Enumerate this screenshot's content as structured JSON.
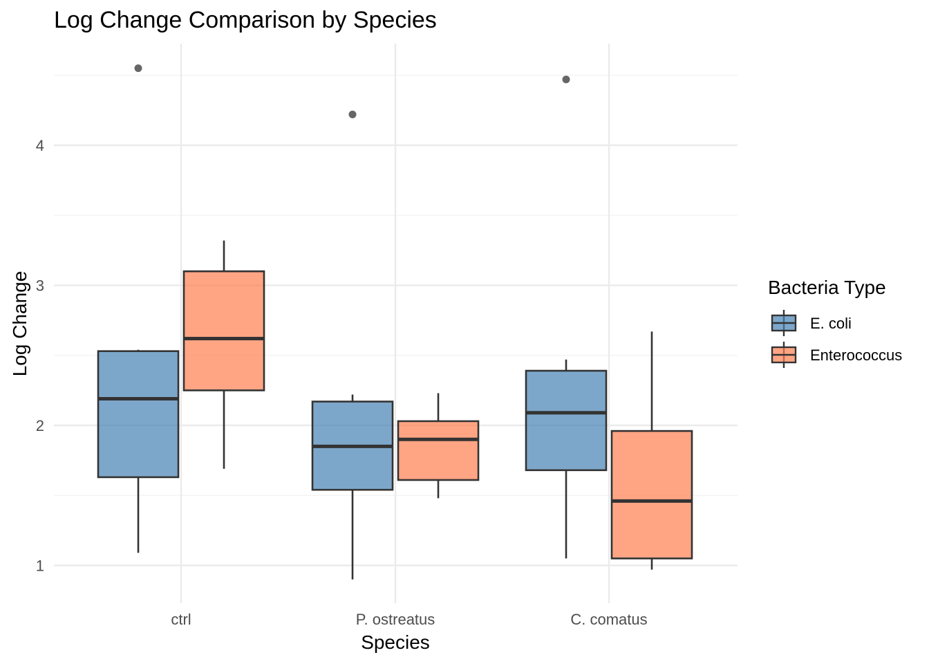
{
  "chart_data": {
    "type": "boxplot",
    "title": "Log Change Comparison by Species",
    "xlabel": "Species",
    "ylabel": "Log Change",
    "categories": [
      "ctrl",
      "P. ostreatus",
      "C. comatus"
    ],
    "ylim": [
      0.73,
      4.75
    ],
    "y_ticks": [
      1,
      2,
      3,
      4
    ],
    "grid": true,
    "legend": {
      "title": "Bacteria Type",
      "position": "right"
    },
    "series": [
      {
        "name": "E. coli",
        "color": "#4682b4",
        "boxes": [
          {
            "category": "ctrl",
            "min": 1.09,
            "q1": 1.63,
            "median": 2.19,
            "q3": 2.53,
            "max": 2.54,
            "outliers": [
              4.55
            ]
          },
          {
            "category": "P. ostreatus",
            "min": 0.9,
            "q1": 1.54,
            "median": 1.85,
            "q3": 2.17,
            "max": 2.22,
            "outliers": [
              4.22
            ]
          },
          {
            "category": "C. comatus",
            "min": 1.05,
            "q1": 1.68,
            "median": 2.09,
            "q3": 2.39,
            "max": 2.47,
            "outliers": [
              4.47
            ]
          }
        ]
      },
      {
        "name": "Enterococcus",
        "color": "#ff7f50",
        "boxes": [
          {
            "category": "ctrl",
            "min": 1.69,
            "q1": 2.25,
            "median": 2.62,
            "q3": 3.1,
            "max": 3.32,
            "outliers": []
          },
          {
            "category": "P. ostreatus",
            "min": 1.48,
            "q1": 1.61,
            "median": 1.9,
            "q3": 2.03,
            "max": 2.23,
            "outliers": []
          },
          {
            "category": "C. comatus",
            "min": 0.97,
            "q1": 1.05,
            "median": 1.46,
            "q3": 1.96,
            "max": 2.67,
            "outliers": []
          }
        ]
      }
    ]
  }
}
